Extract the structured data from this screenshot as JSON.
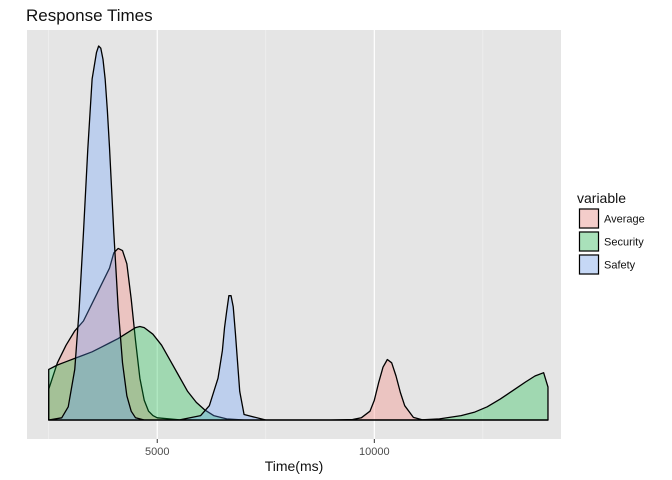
{
  "chart_data": {
    "type": "area",
    "title": "Response Times",
    "xlabel": "Time(ms)",
    "ylabel": "",
    "xlim": [
      2000,
      14300
    ],
    "ylim": [
      0,
      0.0017
    ],
    "x_ticks": [
      5000,
      10000
    ],
    "x_minor_ticks": [
      2500,
      7500,
      12500
    ],
    "grid": true,
    "legend": {
      "title": "variable",
      "position": "right",
      "entries": [
        "Average",
        "Security",
        "Safety"
      ]
    },
    "series": [
      {
        "name": "Average",
        "fill": "#f8766d",
        "x": [
          2500,
          2700,
          2900,
          3100,
          3300,
          3500,
          3700,
          3900,
          4000,
          4100,
          4200,
          4300,
          4400,
          4500,
          4600,
          4700,
          4800,
          4900,
          5000,
          5500,
          6000,
          7000,
          8000,
          9000,
          9500,
          9700,
          9900,
          10000,
          10100,
          10200,
          10300,
          10400,
          10500,
          10600,
          10700,
          10900,
          11100,
          11500,
          12000,
          13000,
          14000
        ],
        "y": [
          0.00014,
          0.00026,
          0.00034,
          0.000405,
          0.00045,
          0.00053,
          0.00061,
          0.00069,
          0.00076,
          0.00078,
          0.00077,
          0.00071,
          0.00055,
          0.00036,
          0.00019,
          9e-05,
          4e-05,
          2e-05,
          1e-05,
          1e-06,
          0,
          0,
          0,
          0,
          2e-06,
          1e-05,
          4e-05,
          9e-05,
          0.00017,
          0.00024,
          0.000275,
          0.00026,
          0.0002,
          0.000125,
          6.5e-05,
          1.2e-05,
          1e-06,
          0,
          0,
          0,
          0
        ]
      },
      {
        "name": "Security",
        "fill": "#00ba38",
        "x": [
          2500,
          2700,
          2900,
          3100,
          3300,
          3500,
          3700,
          3900,
          4100,
          4300,
          4500,
          4600,
          4700,
          4900,
          5100,
          5300,
          5500,
          5700,
          5900,
          6100,
          6300,
          6600,
          7000,
          8000,
          10000,
          11000,
          11500,
          12000,
          12300,
          12600,
          12900,
          13200,
          13500,
          13700,
          13900,
          14000
        ],
        "y": [
          0.00023,
          0.00025,
          0.000265,
          0.00028,
          0.000295,
          0.00031,
          0.00033,
          0.00035,
          0.00037,
          0.000395,
          0.00042,
          0.000425,
          0.00042,
          0.00039,
          0.00034,
          0.00027,
          0.0002,
          0.00013,
          8e-05,
          4.5e-05,
          2e-05,
          5e-06,
          0,
          0,
          0,
          0,
          5e-06,
          2e-05,
          3.5e-05,
          6e-05,
          9.5e-05,
          0.000135,
          0.000175,
          0.0002,
          0.000215,
          0.00015
        ]
      },
      {
        "name": "Safety",
        "fill": "#619cff",
        "x": [
          2500,
          2800,
          2950,
          3100,
          3200,
          3300,
          3400,
          3500,
          3600,
          3650,
          3700,
          3750,
          3800,
          3850,
          3900,
          4000,
          4100,
          4200,
          4300,
          4400,
          4500,
          4700,
          5000,
          5500,
          6000,
          6200,
          6400,
          6500,
          6550,
          6600,
          6650,
          6700,
          6750,
          6800,
          6900,
          7000,
          7500,
          9000,
          11000,
          14000
        ],
        "y": [
          0,
          1e-05,
          6e-05,
          0.00023,
          0.0005,
          0.00085,
          0.00123,
          0.00155,
          0.00167,
          0.0017,
          0.00169,
          0.00164,
          0.00155,
          0.00141,
          0.00124,
          0.00085,
          0.00051,
          0.00026,
          0.00011,
          4e-05,
          1e-05,
          0,
          0,
          0,
          2e-05,
          6.5e-05,
          0.00019,
          0.000315,
          0.00042,
          0.000495,
          0.000565,
          0.000565,
          0.000515,
          0.000395,
          0.00013,
          2.5e-05,
          0,
          0,
          0,
          0
        ]
      }
    ]
  }
}
